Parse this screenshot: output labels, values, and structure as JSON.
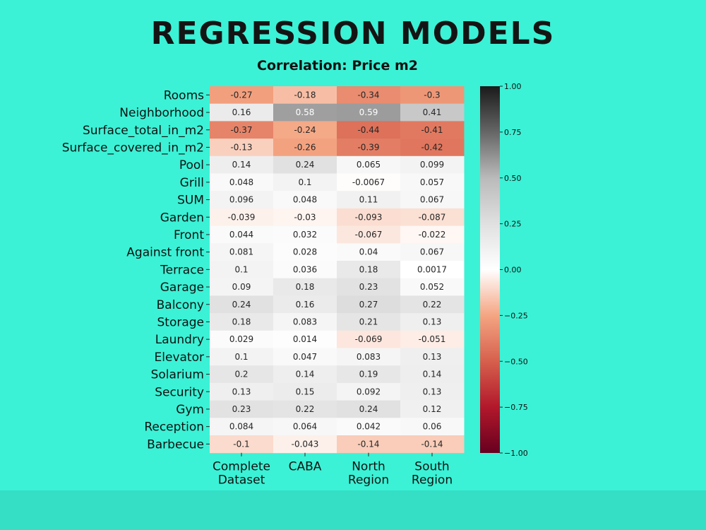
{
  "slide": {
    "title": "REGRESSION MODELS"
  },
  "chart_data": {
    "type": "heatmap",
    "title": "Correlation: Price m2",
    "rows": [
      "Rooms",
      "Neighborhood",
      "Surface_total_in_m2",
      "Surface_covered_in_m2",
      "Pool",
      "Grill",
      "SUM",
      "Garden",
      "Front",
      "Against front",
      "Terrace",
      "Garage",
      "Balcony",
      "Storage",
      "Laundry",
      "Elevator",
      "Solarium",
      "Security",
      "Gym",
      "Reception",
      "Barbecue"
    ],
    "columns": [
      {
        "lines": [
          "Complete",
          "Dataset"
        ]
      },
      {
        "lines": [
          "CABA"
        ]
      },
      {
        "lines": [
          "North",
          "Region"
        ]
      },
      {
        "lines": [
          "South",
          "Region"
        ]
      }
    ],
    "values": [
      [
        -0.27,
        -0.18,
        -0.34,
        -0.3
      ],
      [
        0.16,
        0.58,
        0.59,
        0.41
      ],
      [
        -0.37,
        -0.24,
        -0.44,
        -0.41
      ],
      [
        -0.13,
        -0.26,
        -0.39,
        -0.42
      ],
      [
        0.14,
        0.24,
        0.065,
        0.099
      ],
      [
        0.048,
        0.1,
        -0.0067,
        0.057
      ],
      [
        0.096,
        0.048,
        0.11,
        0.067
      ],
      [
        -0.039,
        -0.03,
        -0.093,
        -0.087
      ],
      [
        0.044,
        0.032,
        -0.067,
        -0.022
      ],
      [
        0.081,
        0.028,
        0.04,
        0.067
      ],
      [
        0.1,
        0.036,
        0.18,
        0.0017
      ],
      [
        0.09,
        0.18,
        0.23,
        0.052
      ],
      [
        0.24,
        0.16,
        0.27,
        0.22
      ],
      [
        0.18,
        0.083,
        0.21,
        0.13
      ],
      [
        0.029,
        0.014,
        -0.069,
        -0.051
      ],
      [
        0.1,
        0.047,
        0.083,
        0.13
      ],
      [
        0.2,
        0.14,
        0.19,
        0.14
      ],
      [
        0.13,
        0.15,
        0.092,
        0.13
      ],
      [
        0.23,
        0.22,
        0.24,
        0.12
      ],
      [
        0.084,
        0.064,
        0.042,
        0.06
      ],
      [
        -0.1,
        -0.043,
        -0.14,
        -0.14
      ]
    ],
    "value_range": [
      -1.0,
      1.0
    ],
    "colorbar_ticks": [
      "1.00",
      "0.75",
      "0.50",
      "0.25",
      "0.00",
      "−0.25",
      "−0.50",
      "−0.75",
      "−1.00"
    ],
    "colormap": "RdGy_r",
    "colors": {
      "negative_end": "#67001f",
      "mid": "#ffffff",
      "positive_end": "#1a1a1a"
    },
    "legend_position": "right"
  }
}
